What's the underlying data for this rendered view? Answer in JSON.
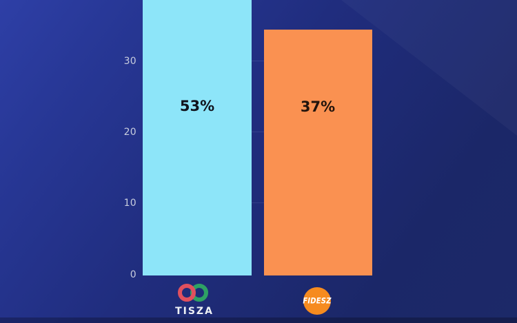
{
  "chart_data": {
    "type": "bar",
    "categories": [
      "TISZA",
      "FIDESZ"
    ],
    "values": [
      53,
      37
    ],
    "value_labels": [
      "53%",
      "37%"
    ],
    "yticks_desc": [
      "30",
      "20",
      "10",
      "0"
    ],
    "ylim_visible": [
      0,
      38.5
    ],
    "grid": "horizontal-faint",
    "legend_position": "below-bars",
    "bar_colors": [
      "#8DE5F9",
      "#FA9151"
    ]
  },
  "legend": {
    "tisza_label": "TISZA",
    "fidesz_label": "FIDESZ"
  },
  "colors": {
    "background_base": "#1e2c74",
    "background_top_left": "#2e3fa6",
    "background_bottom_right": "#1b2768",
    "tisza_bar": "#8de5f9",
    "fidesz_bar": "#fa9151",
    "fidesz_logo": "#f68b1f",
    "tisza_logo_red": "#e0505e",
    "tisza_logo_green": "#2ea164",
    "tick_label": "#c9cede"
  }
}
